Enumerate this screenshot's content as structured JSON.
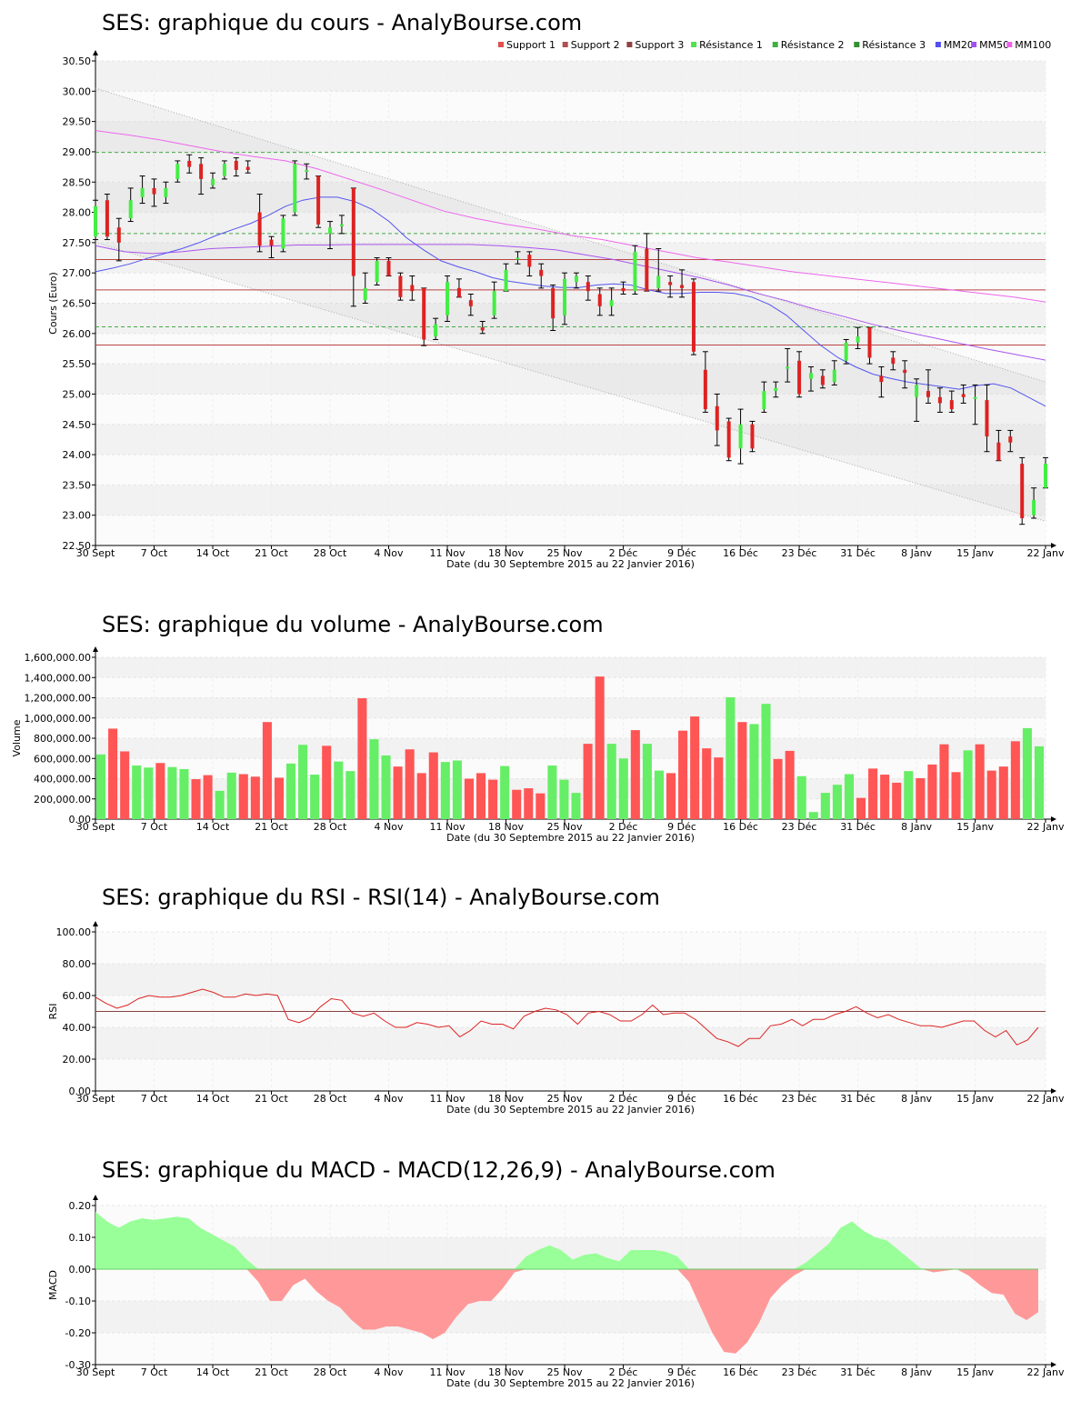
{
  "chart_data": [
    {
      "type": "candlestick",
      "title": "SES: graphique du cours - AnalyBourse.com",
      "xlabel": "Date (du 30 Septembre 2015 au 22 Janvier 2016)",
      "ylabel": "Cours (Euro)",
      "ylim": [
        22.5,
        30.5
      ],
      "yticks": [
        "22.50",
        "23.00",
        "23.50",
        "24.00",
        "24.50",
        "25.00",
        "25.50",
        "26.00",
        "26.50",
        "27.00",
        "27.50",
        "28.00",
        "28.50",
        "29.00",
        "29.50",
        "30.00",
        "30.50"
      ],
      "xticks": [
        "30 Sept",
        "7 Oct",
        "14 Oct",
        "21 Oct",
        "28 Oct",
        "4 Nov",
        "11 Nov",
        "18 Nov",
        "25 Nov",
        "2 Déc",
        "9 Déc",
        "16 Déc",
        "23 Déc",
        "31 Déc",
        "8 Janv",
        "15 Janv",
        "22 Janv"
      ],
      "legend": [
        "Support 1",
        "Support 2",
        "Support 3",
        "Résistance 1",
        "Résistance 2",
        "Résistance 3",
        "MM20",
        "MM50",
        "MM100"
      ],
      "legend_colors": [
        "#e05050",
        "#b05050",
        "#904040",
        "#50e050",
        "#40b040",
        "#309030",
        "#5050f0",
        "#a050f0",
        "#f060f0"
      ],
      "grid": true,
      "support_levels": [
        27.22,
        26.72,
        25.81
      ],
      "resistance_levels": [
        28.99,
        27.65,
        26.11
      ],
      "colors": {
        "up": "#44ee44",
        "down": "#dd2222",
        "support": "#bb4444",
        "resistance": "#44aa44",
        "mm20": "#5555ee",
        "mm50": "#aa55ee",
        "mm100": "#ee66ee"
      },
      "channel": {
        "upper": [
          30.05,
          25.2
        ],
        "lower": [
          27.5,
          22.9
        ]
      },
      "candles": [
        {
          "o": 27.6,
          "c": 28.1,
          "h": 28.2,
          "l": 27.55
        },
        {
          "o": 28.2,
          "c": 27.6,
          "h": 28.3,
          "l": 27.55
        },
        {
          "o": 27.75,
          "c": 27.5,
          "h": 27.9,
          "l": 27.2
        },
        {
          "o": 27.9,
          "c": 28.2,
          "h": 28.4,
          "l": 27.85
        },
        {
          "o": 28.25,
          "c": 28.4,
          "h": 28.6,
          "l": 28.15
        },
        {
          "o": 28.4,
          "c": 28.3,
          "h": 28.55,
          "l": 28.1
        },
        {
          "o": 28.25,
          "c": 28.4,
          "h": 28.5,
          "l": 28.15
        },
        {
          "o": 28.55,
          "c": 28.8,
          "h": 28.85,
          "l": 28.5
        },
        {
          "o": 28.85,
          "c": 28.75,
          "h": 28.95,
          "l": 28.65
        },
        {
          "o": 28.8,
          "c": 28.55,
          "h": 28.9,
          "l": 28.3
        },
        {
          "o": 28.45,
          "c": 28.55,
          "h": 28.65,
          "l": 28.4
        },
        {
          "o": 28.6,
          "c": 28.8,
          "h": 28.85,
          "l": 28.55
        },
        {
          "o": 28.85,
          "c": 28.7,
          "h": 28.9,
          "l": 28.6
        },
        {
          "o": 28.75,
          "c": 28.7,
          "h": 28.85,
          "l": 28.65
        },
        {
          "o": 28.0,
          "c": 27.45,
          "h": 28.3,
          "l": 27.35
        },
        {
          "o": 27.55,
          "c": 27.45,
          "h": 27.6,
          "l": 27.25
        },
        {
          "o": 27.4,
          "c": 27.9,
          "h": 27.95,
          "l": 27.35
        },
        {
          "o": 28.0,
          "c": 28.8,
          "h": 28.85,
          "l": 27.95
        },
        {
          "o": 28.7,
          "c": 28.7,
          "h": 28.8,
          "l": 28.55
        },
        {
          "o": 28.6,
          "c": 27.8,
          "h": 28.6,
          "l": 27.75
        },
        {
          "o": 27.65,
          "c": 27.75,
          "h": 27.85,
          "l": 27.4
        },
        {
          "o": 27.8,
          "c": 27.8,
          "h": 27.95,
          "l": 27.65
        },
        {
          "o": 28.4,
          "c": 26.95,
          "h": 28.4,
          "l": 26.45
        },
        {
          "o": 26.55,
          "c": 26.75,
          "h": 27.0,
          "l": 26.5
        },
        {
          "o": 26.85,
          "c": 27.2,
          "h": 27.25,
          "l": 26.8
        },
        {
          "o": 27.2,
          "c": 26.95,
          "h": 27.25,
          "l": 26.95
        },
        {
          "o": 26.95,
          "c": 26.6,
          "h": 27.0,
          "l": 26.55
        },
        {
          "o": 26.8,
          "c": 26.7,
          "h": 26.95,
          "l": 26.55
        },
        {
          "o": 26.75,
          "c": 25.9,
          "h": 26.75,
          "l": 25.8
        },
        {
          "o": 25.95,
          "c": 26.15,
          "h": 26.25,
          "l": 25.9
        },
        {
          "o": 26.3,
          "c": 26.85,
          "h": 26.95,
          "l": 26.2
        },
        {
          "o": 26.75,
          "c": 26.6,
          "h": 26.9,
          "l": 26.6
        },
        {
          "o": 26.55,
          "c": 26.45,
          "h": 26.65,
          "l": 26.3
        },
        {
          "o": 26.1,
          "c": 26.05,
          "h": 26.2,
          "l": 26.0
        },
        {
          "o": 26.3,
          "c": 26.7,
          "h": 26.85,
          "l": 26.25
        },
        {
          "o": 26.7,
          "c": 27.05,
          "h": 27.15,
          "l": 26.7
        },
        {
          "o": 27.25,
          "c": 27.25,
          "h": 27.35,
          "l": 27.15
        },
        {
          "o": 27.3,
          "c": 27.1,
          "h": 27.35,
          "l": 26.95
        },
        {
          "o": 27.05,
          "c": 26.95,
          "h": 27.15,
          "l": 26.75
        },
        {
          "o": 26.75,
          "c": 26.25,
          "h": 26.8,
          "l": 26.05
        },
        {
          "o": 26.3,
          "c": 26.9,
          "h": 27.0,
          "l": 26.15
        },
        {
          "o": 26.85,
          "c": 26.95,
          "h": 27.0,
          "l": 26.75
        },
        {
          "o": 26.85,
          "c": 26.7,
          "h": 26.95,
          "l": 26.55
        },
        {
          "o": 26.65,
          "c": 26.45,
          "h": 26.75,
          "l": 26.3
        },
        {
          "o": 26.45,
          "c": 26.55,
          "h": 26.75,
          "l": 26.3
        },
        {
          "o": 26.75,
          "c": 26.7,
          "h": 26.85,
          "l": 26.65
        },
        {
          "o": 26.7,
          "c": 27.35,
          "h": 27.45,
          "l": 26.65
        },
        {
          "o": 27.4,
          "c": 26.7,
          "h": 27.65,
          "l": 26.7
        },
        {
          "o": 26.75,
          "c": 26.95,
          "h": 27.4,
          "l": 26.7
        },
        {
          "o": 26.85,
          "c": 26.8,
          "h": 26.95,
          "l": 26.6
        },
        {
          "o": 26.8,
          "c": 26.75,
          "h": 27.05,
          "l": 26.6
        },
        {
          "o": 26.85,
          "c": 25.7,
          "h": 26.9,
          "l": 25.65
        },
        {
          "o": 25.4,
          "c": 24.75,
          "h": 25.7,
          "l": 24.7
        },
        {
          "o": 24.8,
          "c": 24.4,
          "h": 25.0,
          "l": 24.15
        },
        {
          "o": 24.55,
          "c": 23.95,
          "h": 24.6,
          "l": 23.9
        },
        {
          "o": 24.1,
          "c": 24.5,
          "h": 24.75,
          "l": 23.85
        },
        {
          "o": 24.5,
          "c": 24.1,
          "h": 24.55,
          "l": 24.05
        },
        {
          "o": 24.75,
          "c": 25.05,
          "h": 25.2,
          "l": 24.7
        },
        {
          "o": 25.05,
          "c": 25.1,
          "h": 25.2,
          "l": 24.95
        },
        {
          "o": 25.45,
          "c": 25.45,
          "h": 25.75,
          "l": 25.2
        },
        {
          "o": 25.55,
          "c": 25.0,
          "h": 25.7,
          "l": 24.95
        },
        {
          "o": 25.25,
          "c": 25.35,
          "h": 25.45,
          "l": 25.05
        },
        {
          "o": 25.3,
          "c": 25.15,
          "h": 25.4,
          "l": 25.1
        },
        {
          "o": 25.2,
          "c": 25.4,
          "h": 25.55,
          "l": 25.15
        },
        {
          "o": 25.55,
          "c": 25.85,
          "h": 25.9,
          "l": 25.5
        },
        {
          "o": 25.85,
          "c": 25.95,
          "h": 26.1,
          "l": 25.75
        },
        {
          "o": 26.1,
          "c": 25.6,
          "h": 26.1,
          "l": 25.5
        },
        {
          "o": 25.3,
          "c": 25.2,
          "h": 25.45,
          "l": 24.95
        },
        {
          "o": 25.6,
          "c": 25.5,
          "h": 25.7,
          "l": 25.4
        },
        {
          "o": 25.4,
          "c": 25.35,
          "h": 25.55,
          "l": 25.1
        },
        {
          "o": 24.95,
          "c": 25.15,
          "h": 25.25,
          "l": 24.55
        },
        {
          "o": 25.05,
          "c": 24.95,
          "h": 25.4,
          "l": 24.85
        },
        {
          "o": 24.95,
          "c": 24.85,
          "h": 25.1,
          "l": 24.7
        },
        {
          "o": 24.9,
          "c": 24.75,
          "h": 25.05,
          "l": 24.7
        },
        {
          "o": 25.0,
          "c": 24.95,
          "h": 25.15,
          "l": 24.85
        },
        {
          "o": 24.95,
          "c": 24.95,
          "h": 25.15,
          "l": 24.5
        },
        {
          "o": 24.9,
          "c": 24.3,
          "h": 25.15,
          "l": 24.05
        },
        {
          "o": 24.2,
          "c": 23.9,
          "h": 24.4,
          "l": 23.9
        },
        {
          "o": 24.3,
          "c": 24.2,
          "h": 24.4,
          "l": 24.05
        },
        {
          "o": 23.85,
          "c": 22.95,
          "h": 23.95,
          "l": 22.85
        },
        {
          "o": 23.0,
          "c": 23.25,
          "h": 23.45,
          "l": 22.95
        },
        {
          "o": 23.45,
          "c": 23.85,
          "h": 23.95,
          "l": 23.45
        }
      ],
      "mm20": [
        27.02,
        27.08,
        27.15,
        27.24,
        27.32,
        27.4,
        27.5,
        27.62,
        27.72,
        27.82,
        27.95,
        28.1,
        28.2,
        28.25,
        28.25,
        28.18,
        28.05,
        27.85,
        27.58,
        27.38,
        27.2,
        27.1,
        27.02,
        26.92,
        26.86,
        26.82,
        26.78,
        26.76,
        26.76,
        26.8,
        26.82,
        26.8,
        26.72,
        26.66,
        26.66,
        26.68,
        26.68,
        26.66,
        26.6,
        26.48,
        26.3,
        26.05,
        25.8,
        25.6,
        25.45,
        25.33,
        25.26,
        25.2,
        25.16,
        25.12,
        25.08,
        25.14,
        25.17,
        25.1,
        24.95,
        24.8
      ],
      "mm50": [
        27.45,
        27.35,
        27.32,
        27.35,
        27.4,
        27.42,
        27.44,
        27.46,
        27.46,
        27.47,
        27.47,
        27.47,
        27.47,
        27.47,
        27.45,
        27.42,
        27.38,
        27.3,
        27.22,
        27.12,
        27.02,
        26.92,
        26.8,
        26.66,
        26.54,
        26.4,
        26.28,
        26.15,
        26.04,
        25.94,
        25.84,
        25.74,
        25.65,
        25.56
      ],
      "mm100": [
        29.35,
        29.28,
        29.2,
        29.1,
        29.0,
        28.92,
        28.85,
        28.72,
        28.55,
        28.38,
        28.2,
        28.02,
        27.9,
        27.8,
        27.72,
        27.62,
        27.55,
        27.45,
        27.35,
        27.25,
        27.18,
        27.1,
        27.02,
        26.96,
        26.9,
        26.84,
        26.78,
        26.72,
        26.66,
        26.6,
        26.52
      ]
    },
    {
      "type": "bar",
      "title": "SES: graphique du volume - AnalyBourse.com",
      "xlabel": "Date (du 30 Septembre 2015 au 22 Janvier 2016)",
      "ylabel": "Volume",
      "ylim": [
        0,
        1600000
      ],
      "yticks": [
        "0.00",
        "200,000.00",
        "400,000.00",
        "600,000.00",
        "800,000.00",
        "1,000,000.00",
        "1,200,000.00",
        "1,400,000.00",
        "1,600,000.00"
      ],
      "xticks": [
        "30 Sept",
        "7 Oct",
        "14 Oct",
        "21 Oct",
        "28 Oct",
        "4 Nov",
        "11 Nov",
        "18 Nov",
        "25 Nov",
        "2 Déc",
        "9 Déc",
        "16 Déc",
        "23 Déc",
        "31 Déc",
        "8 Janv",
        "15 Janv",
        "22 Janv"
      ],
      "grid": true,
      "values": [
        640000,
        895000,
        670000,
        530000,
        510000,
        555000,
        515000,
        495000,
        395000,
        435000,
        280000,
        460000,
        445000,
        420000,
        960000,
        410000,
        550000,
        735000,
        440000,
        725000,
        570000,
        475000,
        1195000,
        790000,
        630000,
        520000,
        690000,
        455000,
        660000,
        565000,
        580000,
        400000,
        455000,
        390000,
        525000,
        290000,
        305000,
        255000,
        530000,
        390000,
        260000,
        745000,
        1410000,
        745000,
        600000,
        880000,
        745000,
        480000,
        455000,
        875000,
        1015000,
        700000,
        610000,
        1205000,
        960000,
        940000,
        1140000,
        595000,
        675000,
        425000,
        70000,
        260000,
        340000,
        445000,
        210000,
        500000,
        440000,
        360000,
        475000,
        405000,
        540000,
        740000,
        465000,
        680000,
        740000,
        480000,
        520000,
        770000,
        900000,
        720000
      ],
      "up": [
        1,
        0,
        0,
        1,
        1,
        0,
        1,
        1,
        0,
        0,
        1,
        1,
        0,
        0,
        0,
        0,
        1,
        1,
        1,
        0,
        1,
        1,
        0,
        1,
        1,
        0,
        0,
        0,
        0,
        1,
        1,
        0,
        0,
        0,
        1,
        0,
        0,
        0,
        1,
        1,
        1,
        0,
        0,
        1,
        1,
        0,
        1,
        1,
        0,
        0,
        0,
        0,
        0,
        1,
        0,
        1,
        1,
        0,
        0,
        1,
        1,
        1,
        1,
        1,
        0,
        0,
        0,
        0,
        1,
        0,
        0,
        0,
        0,
        1,
        0,
        0,
        0,
        0,
        1,
        1
      ],
      "colors": {
        "up": "#66ee66",
        "down": "#ff5555"
      }
    },
    {
      "type": "line",
      "title": "SES: graphique du RSI - RSI(14) - AnalyBourse.com",
      "xlabel": "Date (du 30 Septembre 2015 au 22 Janvier 2016)",
      "ylabel": "RSI",
      "ylim": [
        0,
        100
      ],
      "yticks": [
        "0.00",
        "20.00",
        "40.00",
        "60.00",
        "80.00",
        "100.00"
      ],
      "xticks": [
        "30 Sept",
        "7 Oct",
        "14 Oct",
        "21 Oct",
        "28 Oct",
        "4 Nov",
        "11 Nov",
        "18 Nov",
        "25 Nov",
        "2 Déc",
        "9 Déc",
        "16 Déc",
        "23 Déc",
        "31 Déc",
        "8 Janv",
        "15 Janv",
        "22 Janv"
      ],
      "reference": 50,
      "grid": true,
      "values": [
        59,
        55,
        52,
        54,
        58,
        60,
        59,
        59,
        60,
        62,
        64,
        62,
        59,
        59,
        61,
        60,
        61,
        60,
        45,
        43,
        46,
        53,
        58,
        57,
        49,
        47,
        49,
        44,
        40,
        40,
        43,
        42,
        40,
        41,
        34,
        38,
        44,
        42,
        42,
        39,
        47,
        50,
        52,
        51,
        48,
        42,
        49,
        50,
        48,
        44,
        44,
        48,
        54,
        48,
        49,
        49,
        45,
        39,
        33,
        31,
        28,
        33,
        33,
        41,
        42,
        45,
        41,
        45,
        45,
        48,
        50,
        53,
        49,
        46,
        48,
        45,
        43,
        41,
        41,
        40,
        42,
        44,
        44,
        38,
        34,
        38,
        29,
        32,
        40
      ],
      "colors": {
        "line": "#dd2222",
        "reference": "#884444"
      }
    },
    {
      "type": "area",
      "title": "SES: graphique du MACD - MACD(12,26,9) - AnalyBourse.com",
      "xlabel": "Date (du 30 Septembre 2015 au 22 Janvier 2016)",
      "ylabel": "MACD",
      "ylim": [
        -0.3,
        0.2
      ],
      "yticks": [
        "-0.30",
        "-0.20",
        "-0.10",
        "0.00",
        "0.10",
        "0.20"
      ],
      "xticks": [
        "30 Sept",
        "7 Oct",
        "14 Oct",
        "21 Oct",
        "28 Oct",
        "4 Nov",
        "11 Nov",
        "18 Nov",
        "25 Nov",
        "2 Déc",
        "9 Déc",
        "16 Déc",
        "23 Déc",
        "31 Déc",
        "8 Janv",
        "15 Janv",
        "22 Janv"
      ],
      "grid": true,
      "values": [
        0.18,
        0.15,
        0.13,
        0.15,
        0.16,
        0.155,
        0.16,
        0.165,
        0.16,
        0.13,
        0.11,
        0.09,
        0.07,
        0.03,
        -0.04,
        -0.1,
        -0.1,
        -0.05,
        -0.03,
        -0.07,
        -0.1,
        -0.12,
        -0.16,
        -0.19,
        -0.19,
        -0.18,
        -0.18,
        -0.19,
        -0.2,
        -0.22,
        -0.2,
        -0.15,
        -0.11,
        -0.1,
        -0.1,
        -0.06,
        -0.01,
        0.04,
        0.06,
        0.075,
        0.06,
        0.03,
        0.045,
        0.05,
        0.035,
        0.025,
        0.06,
        0.06,
        0.06,
        0.055,
        0.04,
        -0.04,
        -0.12,
        -0.2,
        -0.26,
        -0.265,
        -0.23,
        -0.17,
        -0.09,
        -0.05,
        -0.02,
        0.02,
        0.05,
        0.08,
        0.13,
        0.15,
        0.12,
        0.1,
        0.09,
        0.06,
        0.03,
        0.0,
        -0.01,
        -0.005,
        0.0,
        -0.02,
        -0.05,
        -0.075,
        -0.08,
        -0.14,
        -0.16,
        -0.135
      ],
      "colors": {
        "positive": "#99ff99",
        "negative": "#ff9999"
      }
    }
  ]
}
